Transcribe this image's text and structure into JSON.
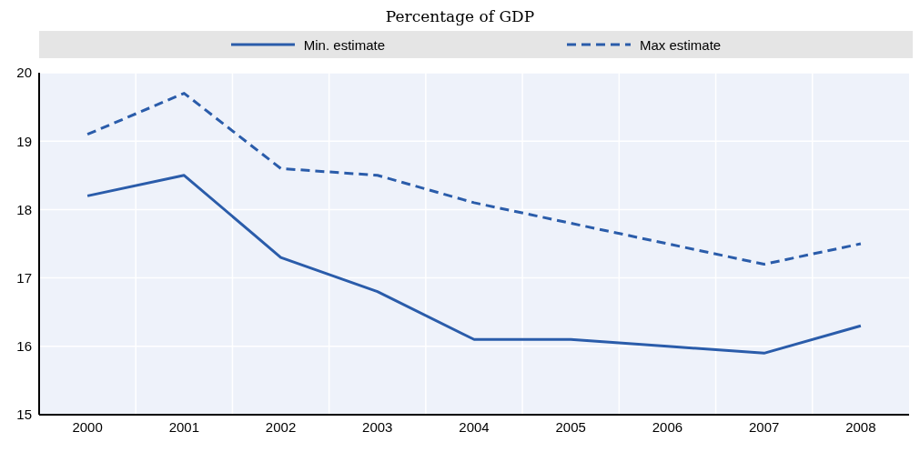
{
  "chart_data": {
    "type": "line",
    "subtitle": "Percentage of GDP",
    "categories": [
      "2000",
      "2001",
      "2002",
      "2003",
      "2004",
      "2005",
      "2006",
      "2007",
      "2008"
    ],
    "series": [
      {
        "name": "Min. estimate",
        "color": "#2a5caa",
        "line_style": "solid",
        "values": [
          18.2,
          18.5,
          17.3,
          16.8,
          16.1,
          16.1,
          16.0,
          15.9,
          16.3
        ]
      },
      {
        "name": "Max estimate",
        "color": "#2a5caa",
        "line_style": "dashed",
        "values": [
          19.1,
          19.7,
          18.6,
          18.5,
          18.1,
          17.8,
          17.5,
          17.2,
          17.5
        ]
      }
    ],
    "ylim": [
      15,
      20
    ],
    "yticks": [
      15,
      16,
      17,
      18,
      19,
      20
    ],
    "grid": true,
    "legend": "top",
    "marker": "none"
  }
}
